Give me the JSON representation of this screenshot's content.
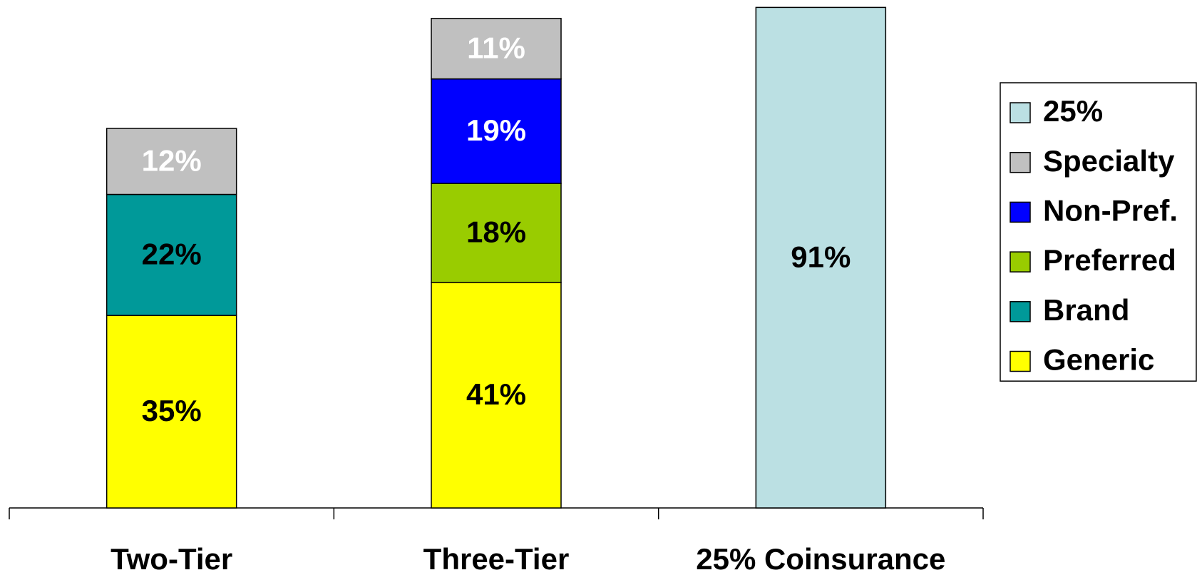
{
  "chart_data": {
    "type": "stacked_bar",
    "categories": [
      "Two-Tier",
      "Three-Tier",
      "25% Coinsurance"
    ],
    "legend": "right",
    "series": [
      {
        "name": "Generic",
        "color": "#ffff00",
        "label_color": "#000000",
        "values": [
          35,
          41,
          null
        ],
        "value_labels": [
          "35%",
          "41%",
          null
        ]
      },
      {
        "name": "Brand",
        "color": "#009999",
        "label_color": "#000000",
        "values": [
          22,
          null,
          null
        ],
        "value_labels": [
          "22%",
          null,
          null
        ]
      },
      {
        "name": "Preferred",
        "color": "#99cc00",
        "label_color": "#000000",
        "values": [
          null,
          18,
          null
        ],
        "value_labels": [
          null,
          "18%",
          null
        ]
      },
      {
        "name": "Non-Pref.",
        "color": "#0000ff",
        "label_color": "#ffffff",
        "values": [
          null,
          19,
          null
        ],
        "value_labels": [
          null,
          "19%",
          null
        ]
      },
      {
        "name": "Specialty",
        "color": "#c0c0c0",
        "label_color": "#ffffff",
        "values": [
          12,
          11,
          null
        ],
        "value_labels": [
          "12%",
          "11%",
          null
        ]
      },
      {
        "name": "25%",
        "color": "#bbe0e3",
        "label_color": "#000000",
        "values": [
          null,
          null,
          91
        ],
        "value_labels": [
          null,
          null,
          "91%"
        ]
      }
    ]
  }
}
